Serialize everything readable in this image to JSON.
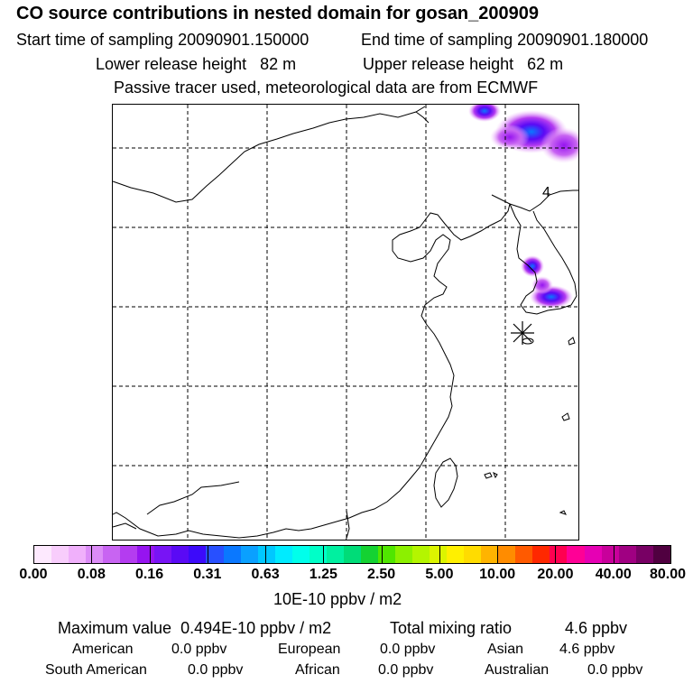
{
  "header": {
    "title": "CO  source contributions in nested domain for gosan_200909",
    "start_label": "Start time of sampling",
    "start_value": "20090901.150000",
    "end_label": "End time of sampling",
    "end_value": "20090901.180000",
    "lower_label": "Lower release height",
    "lower_value": "82 m",
    "upper_label": "Upper release height",
    "upper_value": "62 m",
    "note": "Passive tracer used, meteorological data are from ECMWF"
  },
  "map": {
    "contour_label": "4",
    "receptor_marker": "gosan-station"
  },
  "colorbar": {
    "colors": [
      "#fde9fe",
      "#f8cdfc",
      "#f0b0fb",
      "#dc8cf7",
      "#c864f2",
      "#b43cf0",
      "#9614f0",
      "#7814f5",
      "#5a0af5",
      "#3c0afa",
      "#2850ff",
      "#0a78ff",
      "#0aa0ff",
      "#00c8ff",
      "#00ebff",
      "#00ffeb",
      "#00ffc8",
      "#00f0a0",
      "#00dc78",
      "#14d232",
      "#50e600",
      "#8cf000",
      "#b4f500",
      "#dcf500",
      "#fff000",
      "#ffdc00",
      "#ffb400",
      "#ff8c00",
      "#ff5a00",
      "#ff2800",
      "#ff0050",
      "#ff0096",
      "#e600b4",
      "#c8009b",
      "#a00082",
      "#780064",
      "#500040"
    ],
    "tick_labels": [
      "0.00",
      "0.08",
      "0.16",
      "0.31",
      "0.63",
      "1.25",
      "2.50",
      "5.00",
      "10.00",
      "20.00",
      "40.00",
      "80.00"
    ],
    "units": "10E-10 ppbv / m2"
  },
  "stats": {
    "max_label": "Maximum value",
    "max_value": "0.494E-10 ppbv / m2",
    "total_label": "Total mixing ratio",
    "total_value": "4.6 ppbv"
  },
  "regions": [
    {
      "name": "American",
      "value": "0.0 ppbv"
    },
    {
      "name": "European",
      "value": "0.0 ppbv"
    },
    {
      "name": "Asian",
      "value": "4.6 ppbv"
    },
    {
      "name": "South American",
      "value": "0.0 ppbv"
    },
    {
      "name": "African",
      "value": "0.0 ppbv"
    },
    {
      "name": "Australian",
      "value": "0.0 ppbv"
    }
  ]
}
